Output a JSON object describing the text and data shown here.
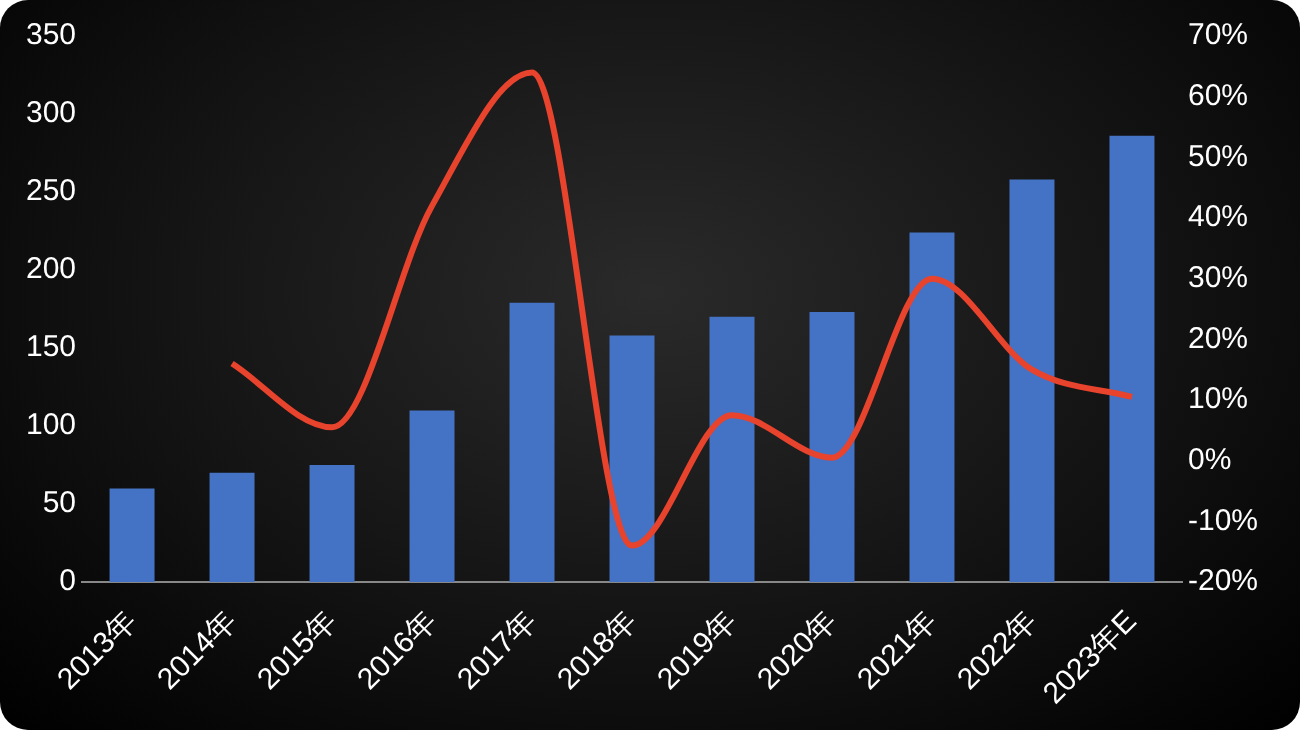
{
  "chart_data": {
    "type": "bar",
    "categories": [
      "2013年",
      "2014年",
      "2015年",
      "2016年",
      "2017年",
      "2018年",
      "2019年",
      "2020年",
      "2021年",
      "2022年",
      "2023年E"
    ],
    "series": [
      {
        "color": "#4472c4",
        "values": [
          60,
          70,
          75,
          110,
          179,
          158,
          170,
          173,
          224,
          258,
          286
        ]
      },
      {
        "type": "line",
        "axis": "y2",
        "color": "#e8432d",
        "values": [
          null,
          16,
          5.5,
          42,
          64,
          -14,
          7.5,
          0.5,
          30,
          15,
          10.5
        ]
      }
    ],
    "ylim": [
      0,
      350
    ],
    "yticks": [
      0,
      50,
      100,
      150,
      200,
      250,
      300,
      350
    ],
    "y2lim": [
      -20,
      70
    ],
    "y2ticks": [
      {
        "value": -20,
        "label": "-20%"
      },
      {
        "value": -10,
        "label": "-10%"
      },
      {
        "value": 0,
        "label": "0%"
      },
      {
        "value": 10,
        "label": "10%"
      },
      {
        "value": 20,
        "label": "20%"
      },
      {
        "value": 30,
        "label": "30%"
      },
      {
        "value": 40,
        "label": "40%"
      },
      {
        "value": 50,
        "label": "50%"
      },
      {
        "value": 60,
        "label": "60%"
      },
      {
        "value": 70,
        "label": "70%"
      }
    ],
    "grid": false,
    "legend": false,
    "marker": "none"
  }
}
